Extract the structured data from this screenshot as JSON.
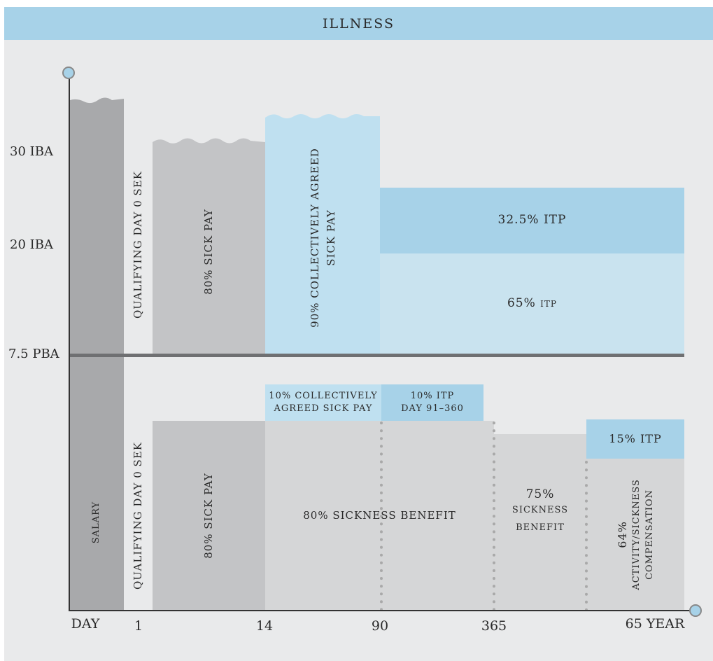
{
  "title": "ILLNESS",
  "y_axis_labels": [
    "30 IBA",
    "20 IBA",
    "7.5 PBA"
  ],
  "x_axis_labels": [
    "DAY",
    "1",
    "14",
    "90",
    "365",
    "65 YEAR"
  ],
  "upper": {
    "salary": "",
    "qualifying_day": "QUALIFYING DAY 0 SEK",
    "sick_pay": "80% SICK PAY",
    "collective_sick_pay": [
      "90% COLLECTIVELY AGREED",
      "SICK PAY"
    ],
    "itp_32": "32.5% ITP",
    "itp_65": "65% ITP"
  },
  "lower": {
    "salary": "SALARY",
    "qualifying_day": "QUALIFYING DAY 0 SEK",
    "sick_pay": "80% SICK PAY",
    "collective_sick_pay": [
      "10% COLLECTIVELY",
      "AGREED SICK PAY"
    ],
    "itp_10": [
      "10% ITP",
      "DAY 91–360"
    ],
    "sickness_benefit_80": "80% SICKNESS BENEFIT",
    "sickness_benefit_75": [
      "75%",
      "SICKNESS",
      "BENEFIT"
    ],
    "itp_15": "15% ITP",
    "activity_compensation": [
      "64%",
      "ACTIVITY/SICKNESS",
      "COMPENSATION"
    ]
  },
  "colors": {
    "background": "#e9eaeb",
    "header": "#a7d2e8",
    "salary": "#a8a9ab",
    "sick_pay": "#c3c4c6",
    "benefit": "#d5d6d7",
    "light_blue": "#bfe0f0",
    "mid_blue": "#a7d2e8",
    "pale_blue": "#c9e3ef",
    "divider": "#6f7072"
  }
}
